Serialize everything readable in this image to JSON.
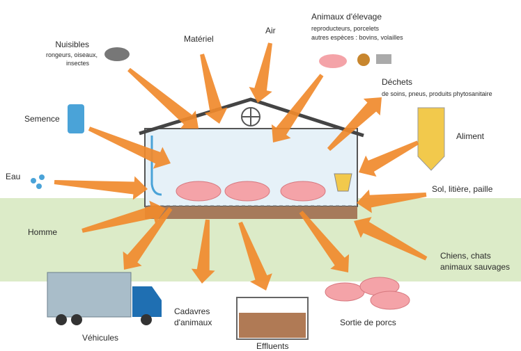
{
  "nuisibles": {
    "label": "Nuisibles",
    "details": [
      "rongeurs, oiseaux,",
      "insectes"
    ]
  },
  "materiel": {
    "label": "Matériel"
  },
  "air": {
    "label": "Air"
  },
  "animaux": {
    "label": "Animaux d'élevage",
    "details": [
      "reproducteurs, porcelets",
      "autres espèces : bovins, volailles"
    ]
  },
  "dechets": {
    "label": "Déchets",
    "details": [
      "de soins, pneus, produits phytosanitaire"
    ]
  },
  "semence": {
    "label": "Semence"
  },
  "aliment": {
    "label": "Aliment"
  },
  "eau": {
    "label": "Eau"
  },
  "sol": {
    "label": "Sol, litière, paille"
  },
  "homme": {
    "label": "Homme"
  },
  "chiens": {
    "label": "Chiens, chats",
    "details": [
      "animaux sauvages"
    ]
  },
  "vehicules": {
    "label": "Véhicules"
  },
  "cadavres": {
    "label": "Cadavres",
    "details": [
      "d'animaux"
    ]
  },
  "effluents": {
    "label": "Effluents"
  },
  "sortie": {
    "label": "Sortie de porcs"
  }
}
